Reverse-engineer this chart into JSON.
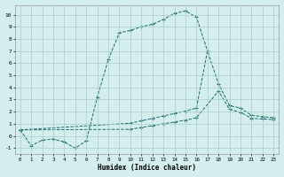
{
  "title": "",
  "xlabel": "Humidex (Indice chaleur)",
  "bg_color": "#d4eeee",
  "grid_color": "#aacccc",
  "line_color": "#1a6b6b",
  "xlim": [
    -0.5,
    23.5
  ],
  "ylim": [
    -1.5,
    10.8
  ],
  "yticks": [
    -1,
    0,
    1,
    2,
    3,
    4,
    5,
    6,
    7,
    8,
    9,
    10
  ],
  "xticks": [
    0,
    1,
    2,
    3,
    4,
    5,
    6,
    7,
    8,
    9,
    10,
    11,
    12,
    13,
    14,
    15,
    16,
    17,
    18,
    19,
    20,
    21,
    22,
    23
  ],
  "series": [
    {
      "x": [
        0,
        1,
        2,
        3,
        4,
        5,
        6,
        7,
        8,
        9,
        10,
        11,
        12,
        13,
        14,
        15,
        16,
        17
      ],
      "y": [
        0.5,
        -0.8,
        -0.35,
        -0.25,
        -0.5,
        -1.0,
        -0.4,
        3.2,
        6.3,
        8.5,
        8.7,
        9.0,
        9.2,
        9.6,
        10.1,
        10.3,
        9.8,
        7.0
      ]
    },
    {
      "x": [
        0,
        10,
        11,
        12,
        13,
        14,
        15,
        16,
        17,
        18,
        19,
        20,
        21,
        22,
        23
      ],
      "y": [
        0.5,
        1.05,
        1.25,
        1.45,
        1.65,
        1.85,
        2.05,
        2.3,
        7.0,
        4.3,
        2.5,
        2.3,
        1.7,
        1.6,
        1.5
      ]
    },
    {
      "x": [
        0,
        10,
        11,
        12,
        13,
        14,
        15,
        16,
        18,
        19,
        20,
        21,
        22,
        23
      ],
      "y": [
        0.5,
        0.55,
        0.7,
        0.85,
        1.0,
        1.15,
        1.3,
        1.5,
        3.7,
        2.2,
        1.95,
        1.45,
        1.4,
        1.35
      ]
    }
  ]
}
